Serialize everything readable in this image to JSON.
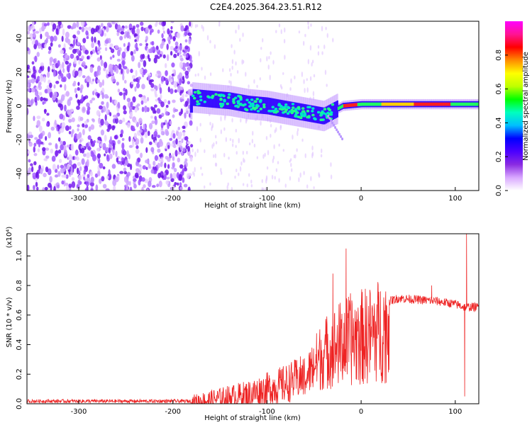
{
  "page": {
    "title": "C2E4.2025.364.23.51.R12"
  },
  "chart_data": [
    {
      "type": "heatmap",
      "xlabel": "Height of straight line (km)",
      "ylabel": "Frequency (Hz)",
      "xlim": [
        -355,
        125
      ],
      "ylim": [
        -50,
        50
      ],
      "xticks": [
        -300,
        -200,
        -100,
        0,
        100
      ],
      "yticks": [
        -40,
        -20,
        0,
        20,
        40
      ],
      "grid": false,
      "colorbar": {
        "label": "Normalized spectral amplitude",
        "range": [
          0,
          1
        ],
        "ticks": [
          0.0,
          0.2,
          0.4,
          0.6,
          0.8
        ],
        "colors": [
          "#ffffff",
          "#d9a8ff",
          "#8a2be2",
          "#4b00ff",
          "#0000ff",
          "#00bfff",
          "#00ffbf",
          "#00ff00",
          "#bfff00",
          "#ffff00",
          "#ff8c00",
          "#ff0000",
          "#ff1493",
          "#ff00ff"
        ]
      },
      "features": {
        "noise_region_x": [
          -355,
          -180
        ],
        "ridge_points": [
          [
            -180,
            5
          ],
          [
            -160,
            4
          ],
          [
            -140,
            3
          ],
          [
            -120,
            1
          ],
          [
            -100,
            0
          ],
          [
            -80,
            -2
          ],
          [
            -60,
            -4
          ],
          [
            -40,
            -6
          ],
          [
            -30,
            -3
          ],
          [
            -20,
            0
          ],
          [
            0,
            1
          ],
          [
            40,
            1
          ],
          [
            80,
            1
          ],
          [
            120,
            1
          ]
        ]
      }
    },
    {
      "type": "line",
      "xlabel": "Height of straight line (km)",
      "ylabel": "SNR (10 * v/v)",
      "yscale_label": "(x10⁴)",
      "xlim": [
        -355,
        125
      ],
      "ylim": [
        0,
        1.15
      ],
      "xticks": [
        -300,
        -200,
        -100,
        0,
        100
      ],
      "yticks": [
        0.0,
        0.2,
        0.4,
        0.6,
        0.8,
        1.0
      ],
      "grid": false,
      "series": [
        {
          "color": "#ee2222",
          "envelope": [
            [
              -355,
              0.02
            ],
            [
              -250,
              0.02
            ],
            [
              -200,
              0.02
            ],
            [
              -180,
              0.02
            ],
            [
              -160,
              0.04
            ],
            [
              -140,
              0.06
            ],
            [
              -120,
              0.08
            ],
            [
              -100,
              0.12
            ],
            [
              -80,
              0.16
            ],
            [
              -60,
              0.22
            ],
            [
              -50,
              0.35
            ],
            [
              -40,
              0.45
            ],
            [
              -30,
              0.5
            ],
            [
              -20,
              0.55
            ],
            [
              -10,
              0.58
            ],
            [
              0,
              0.6
            ],
            [
              10,
              0.62
            ],
            [
              20,
              0.66
            ],
            [
              30,
              0.7
            ],
            [
              40,
              0.72
            ],
            [
              60,
              0.71
            ],
            [
              80,
              0.7
            ],
            [
              100,
              0.68
            ],
            [
              110,
              0.66
            ],
            [
              125,
              0.66
            ]
          ],
          "spikes": [
            [
              -16,
              1.05
            ],
            [
              -30,
              0.88
            ],
            [
              75,
              0.8
            ],
            [
              112,
              1.15
            ],
            [
              110,
              0.05
            ]
          ]
        }
      ]
    }
  ]
}
